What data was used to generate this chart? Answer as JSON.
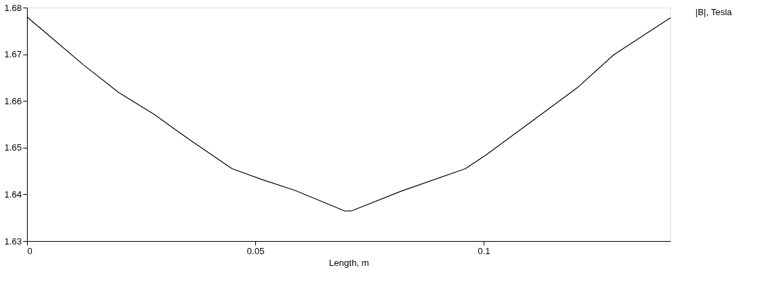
{
  "chart_data": {
    "type": "line",
    "xlabel": "Length, m",
    "xlim": [
      0,
      0.1409
    ],
    "ylim": [
      1.63,
      1.68
    ],
    "xticks": [
      0,
      0.05,
      0.1
    ],
    "yticks": [
      1.63,
      1.64,
      1.65,
      1.66,
      1.67,
      1.68
    ],
    "grid": false,
    "legend": "top right",
    "marker": "none",
    "line_style": "solid",
    "x": [
      0,
      0.0046,
      0.0124,
      0.0201,
      0.0279,
      0.0356,
      0.0449,
      0.0511,
      0.0588,
      0.0697,
      0.0712,
      0.082,
      0.096,
      0.1006,
      0.1099,
      0.1207,
      0.1285,
      0.1409
    ],
    "series": [
      {
        "name": "|B|, Tesla",
        "color": "#000000",
        "values": [
          1.678,
          1.6742,
          1.6677,
          1.6618,
          1.6571,
          1.6517,
          1.6455,
          1.6433,
          1.6408,
          1.6364,
          1.6365,
          1.6407,
          1.6455,
          1.6485,
          1.6552,
          1.663,
          1.6699,
          1.6778
        ]
      }
    ]
  }
}
